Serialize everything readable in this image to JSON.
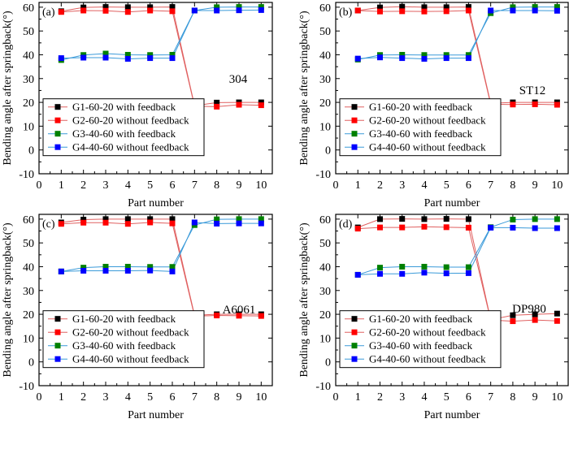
{
  "chart_data": [
    {
      "type": "line",
      "panel_label": "(a)",
      "material": "304",
      "xlabel": "Part number",
      "ylabel": "Bending angle after springback(°)",
      "xlim": [
        0,
        10.5
      ],
      "ylim": [
        -10,
        62
      ],
      "xticks": [
        "0",
        "1",
        "2",
        "3",
        "4",
        "5",
        "6",
        "7",
        "8",
        "9",
        "10"
      ],
      "yticks": [
        "-10",
        "0",
        "10",
        "20",
        "30",
        "40",
        "50",
        "60"
      ],
      "x": [
        1,
        2,
        3,
        4,
        5,
        6,
        7,
        8,
        9,
        10
      ],
      "legend_position": "bottom-left",
      "series": [
        {
          "name": "G1-60-20 with feedback",
          "color": "#000000",
          "line_color": "#e06060",
          "values": [
            58.3,
            59.9,
            60.1,
            60.0,
            60.0,
            60.1,
            18.6,
            19.9,
            20.0,
            20.0
          ]
        },
        {
          "name": "G2-60-20 without feedback",
          "color": "#ff0000",
          "line_color": "#e06060",
          "values": [
            58.0,
            58.6,
            58.5,
            58.0,
            58.6,
            58.3,
            18.4,
            18.2,
            19.0,
            18.8
          ]
        },
        {
          "name": "G3-40-60 with feedback",
          "color": "#008000",
          "line_color": "#3a9ad9",
          "values": [
            37.8,
            39.9,
            40.5,
            40.0,
            39.9,
            40.0,
            58.6,
            60.0,
            60.1,
            60.1
          ]
        },
        {
          "name": "G4-40-60 without feedback",
          "color": "#0000ff",
          "line_color": "#3a9ad9",
          "values": [
            38.6,
            38.8,
            38.8,
            38.3,
            38.6,
            38.6,
            58.6,
            58.6,
            58.7,
            58.8
          ]
        }
      ]
    },
    {
      "type": "line",
      "panel_label": "(b)",
      "material": "ST12",
      "xlabel": "Part number",
      "ylabel": "Bending angle after springback(°)",
      "xlim": [
        0,
        10.5
      ],
      "ylim": [
        -10,
        62
      ],
      "xticks": [
        "0",
        "1",
        "2",
        "3",
        "4",
        "5",
        "6",
        "7",
        "8",
        "9",
        "10"
      ],
      "yticks": [
        "-10",
        "0",
        "10",
        "20",
        "30",
        "40",
        "50",
        "60"
      ],
      "x": [
        1,
        2,
        3,
        4,
        5,
        6,
        7,
        8,
        9,
        10
      ],
      "legend_position": "bottom-left",
      "series": [
        {
          "name": "G1-60-20 with feedback",
          "color": "#000000",
          "line_color": "#e06060",
          "values": [
            58.6,
            59.9,
            60.2,
            60.0,
            60.0,
            60.1,
            19.6,
            20.0,
            20.0,
            20.0
          ]
        },
        {
          "name": "G2-60-20 without feedback",
          "color": "#ff0000",
          "line_color": "#e06060",
          "values": [
            58.6,
            58.2,
            58.3,
            58.2,
            58.3,
            58.6,
            19.2,
            19.1,
            19.2,
            19.0
          ]
        },
        {
          "name": "G3-40-60 with feedback",
          "color": "#008000",
          "line_color": "#3a9ad9",
          "values": [
            38.0,
            39.9,
            40.0,
            39.9,
            39.9,
            39.9,
            57.5,
            60.0,
            60.1,
            60.1
          ]
        },
        {
          "name": "G4-40-60 without feedback",
          "color": "#0000ff",
          "line_color": "#3a9ad9",
          "values": [
            38.4,
            38.9,
            38.6,
            38.3,
            38.6,
            38.6,
            58.6,
            58.6,
            58.6,
            58.5
          ]
        }
      ]
    },
    {
      "type": "line",
      "panel_label": "(c)",
      "material": "A6061",
      "xlabel": "Part number",
      "ylabel": "Bending angle after springback(°)",
      "xlim": [
        0,
        10.5
      ],
      "ylim": [
        -10,
        62
      ],
      "xticks": [
        "0",
        "1",
        "2",
        "3",
        "4",
        "5",
        "6",
        "7",
        "8",
        "9",
        "10"
      ],
      "yticks": [
        "-10",
        "0",
        "10",
        "20",
        "30",
        "40",
        "50",
        "60"
      ],
      "x": [
        1,
        2,
        3,
        4,
        5,
        6,
        7,
        8,
        9,
        10
      ],
      "legend_position": "bottom-left",
      "series": [
        {
          "name": "G1-60-20 with feedback",
          "color": "#000000",
          "line_color": "#e06060",
          "values": [
            58.6,
            59.8,
            60.0,
            60.0,
            60.0,
            60.0,
            19.6,
            20.0,
            20.0,
            20.0
          ]
        },
        {
          "name": "G2-60-20 without feedback",
          "color": "#ff0000",
          "line_color": "#e06060",
          "values": [
            58.0,
            58.5,
            58.5,
            58.0,
            58.6,
            58.2,
            19.2,
            19.5,
            19.4,
            19.3
          ]
        },
        {
          "name": "G3-40-60 with feedback",
          "color": "#008000",
          "line_color": "#3a9ad9",
          "values": [
            38.0,
            39.6,
            40.0,
            40.0,
            39.9,
            39.9,
            57.5,
            59.9,
            60.0,
            60.0
          ]
        },
        {
          "name": "G4-40-60 without feedback",
          "color": "#0000ff",
          "line_color": "#3a9ad9",
          "values": [
            38.0,
            38.3,
            38.3,
            38.3,
            38.4,
            38.0,
            58.6,
            58.1,
            58.2,
            58.2
          ]
        }
      ]
    },
    {
      "type": "line",
      "panel_label": "(d)",
      "material": "DP980",
      "xlabel": "Part number",
      "ylabel": "Bending angle after springback(°)",
      "xlim": [
        0,
        10.5
      ],
      "ylim": [
        -10,
        62
      ],
      "xticks": [
        "0",
        "1",
        "2",
        "3",
        "4",
        "5",
        "6",
        "7",
        "8",
        "9",
        "10"
      ],
      "yticks": [
        "-10",
        "0",
        "10",
        "20",
        "30",
        "40",
        "50",
        "60"
      ],
      "x": [
        1,
        2,
        3,
        4,
        5,
        6,
        7,
        8,
        9,
        10
      ],
      "legend_position": "bottom-left",
      "series": [
        {
          "name": "G1-60-20 with feedback",
          "color": "#000000",
          "line_color": "#e06060",
          "values": [
            56.5,
            60.0,
            60.1,
            60.0,
            60.1,
            60.0,
            17.7,
            19.6,
            20.0,
            20.3
          ]
        },
        {
          "name": "G2-60-20 without feedback",
          "color": "#ff0000",
          "line_color": "#e06060",
          "values": [
            56.0,
            56.5,
            56.5,
            56.8,
            56.6,
            56.4,
            17.6,
            17.1,
            17.6,
            17.2
          ]
        },
        {
          "name": "G3-40-60 with feedback",
          "color": "#008000",
          "line_color": "#3a9ad9",
          "values": [
            36.6,
            39.6,
            40.0,
            40.0,
            39.8,
            39.8,
            56.6,
            59.8,
            60.0,
            60.0
          ]
        },
        {
          "name": "G4-40-60 without feedback",
          "color": "#0000ff",
          "line_color": "#3a9ad9",
          "values": [
            36.6,
            37.0,
            37.0,
            37.5,
            37.2,
            37.3,
            56.4,
            56.4,
            56.2,
            56.2
          ]
        }
      ]
    }
  ]
}
